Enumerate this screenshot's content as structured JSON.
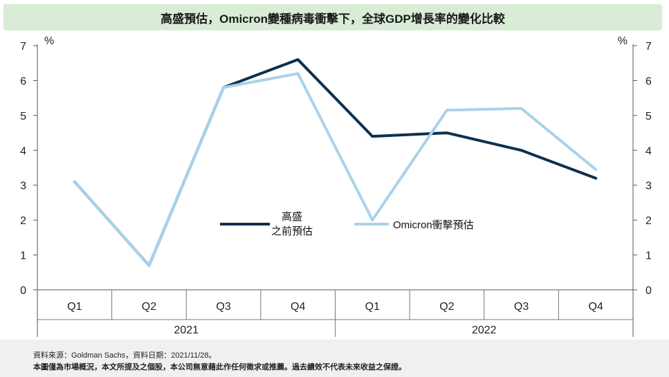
{
  "title": "高盛預估，Omicron變種病毒衝擊下，全球GDP增長率的變化比較",
  "footer": {
    "source": "資料來源：Goldman Sachs，資料日期：2021/11/28。",
    "disclaimer": "本圖僅為市場概況，本文所提及之個股，本公司無意藉此作任何徵求或推薦。過去績效不代表未來收益之保證。"
  },
  "chart_data": {
    "type": "line",
    "categories": [
      "Q1",
      "Q2",
      "Q3",
      "Q4",
      "Q1",
      "Q2",
      "Q3",
      "Q4"
    ],
    "year_groups": [
      {
        "label": "2021",
        "span": 4
      },
      {
        "label": "2022",
        "span": 4
      }
    ],
    "series": [
      {
        "name": "高盛\n之前預估",
        "color": "#0e3050",
        "values": [
          3.1,
          0.7,
          5.8,
          6.6,
          4.4,
          4.5,
          4.0,
          3.2
        ]
      },
      {
        "name": "Omicron衝擊預估",
        "color": "#a9d2ea",
        "values": [
          3.1,
          0.7,
          5.8,
          6.2,
          2.0,
          5.15,
          5.2,
          3.45
        ]
      }
    ],
    "ylim": [
      0,
      7
    ],
    "yticks": [
      0,
      1,
      2,
      3,
      4,
      5,
      6,
      7
    ],
    "y_unit_left": "%",
    "y_unit_right": "%",
    "grid": false,
    "legend_position": "center"
  }
}
